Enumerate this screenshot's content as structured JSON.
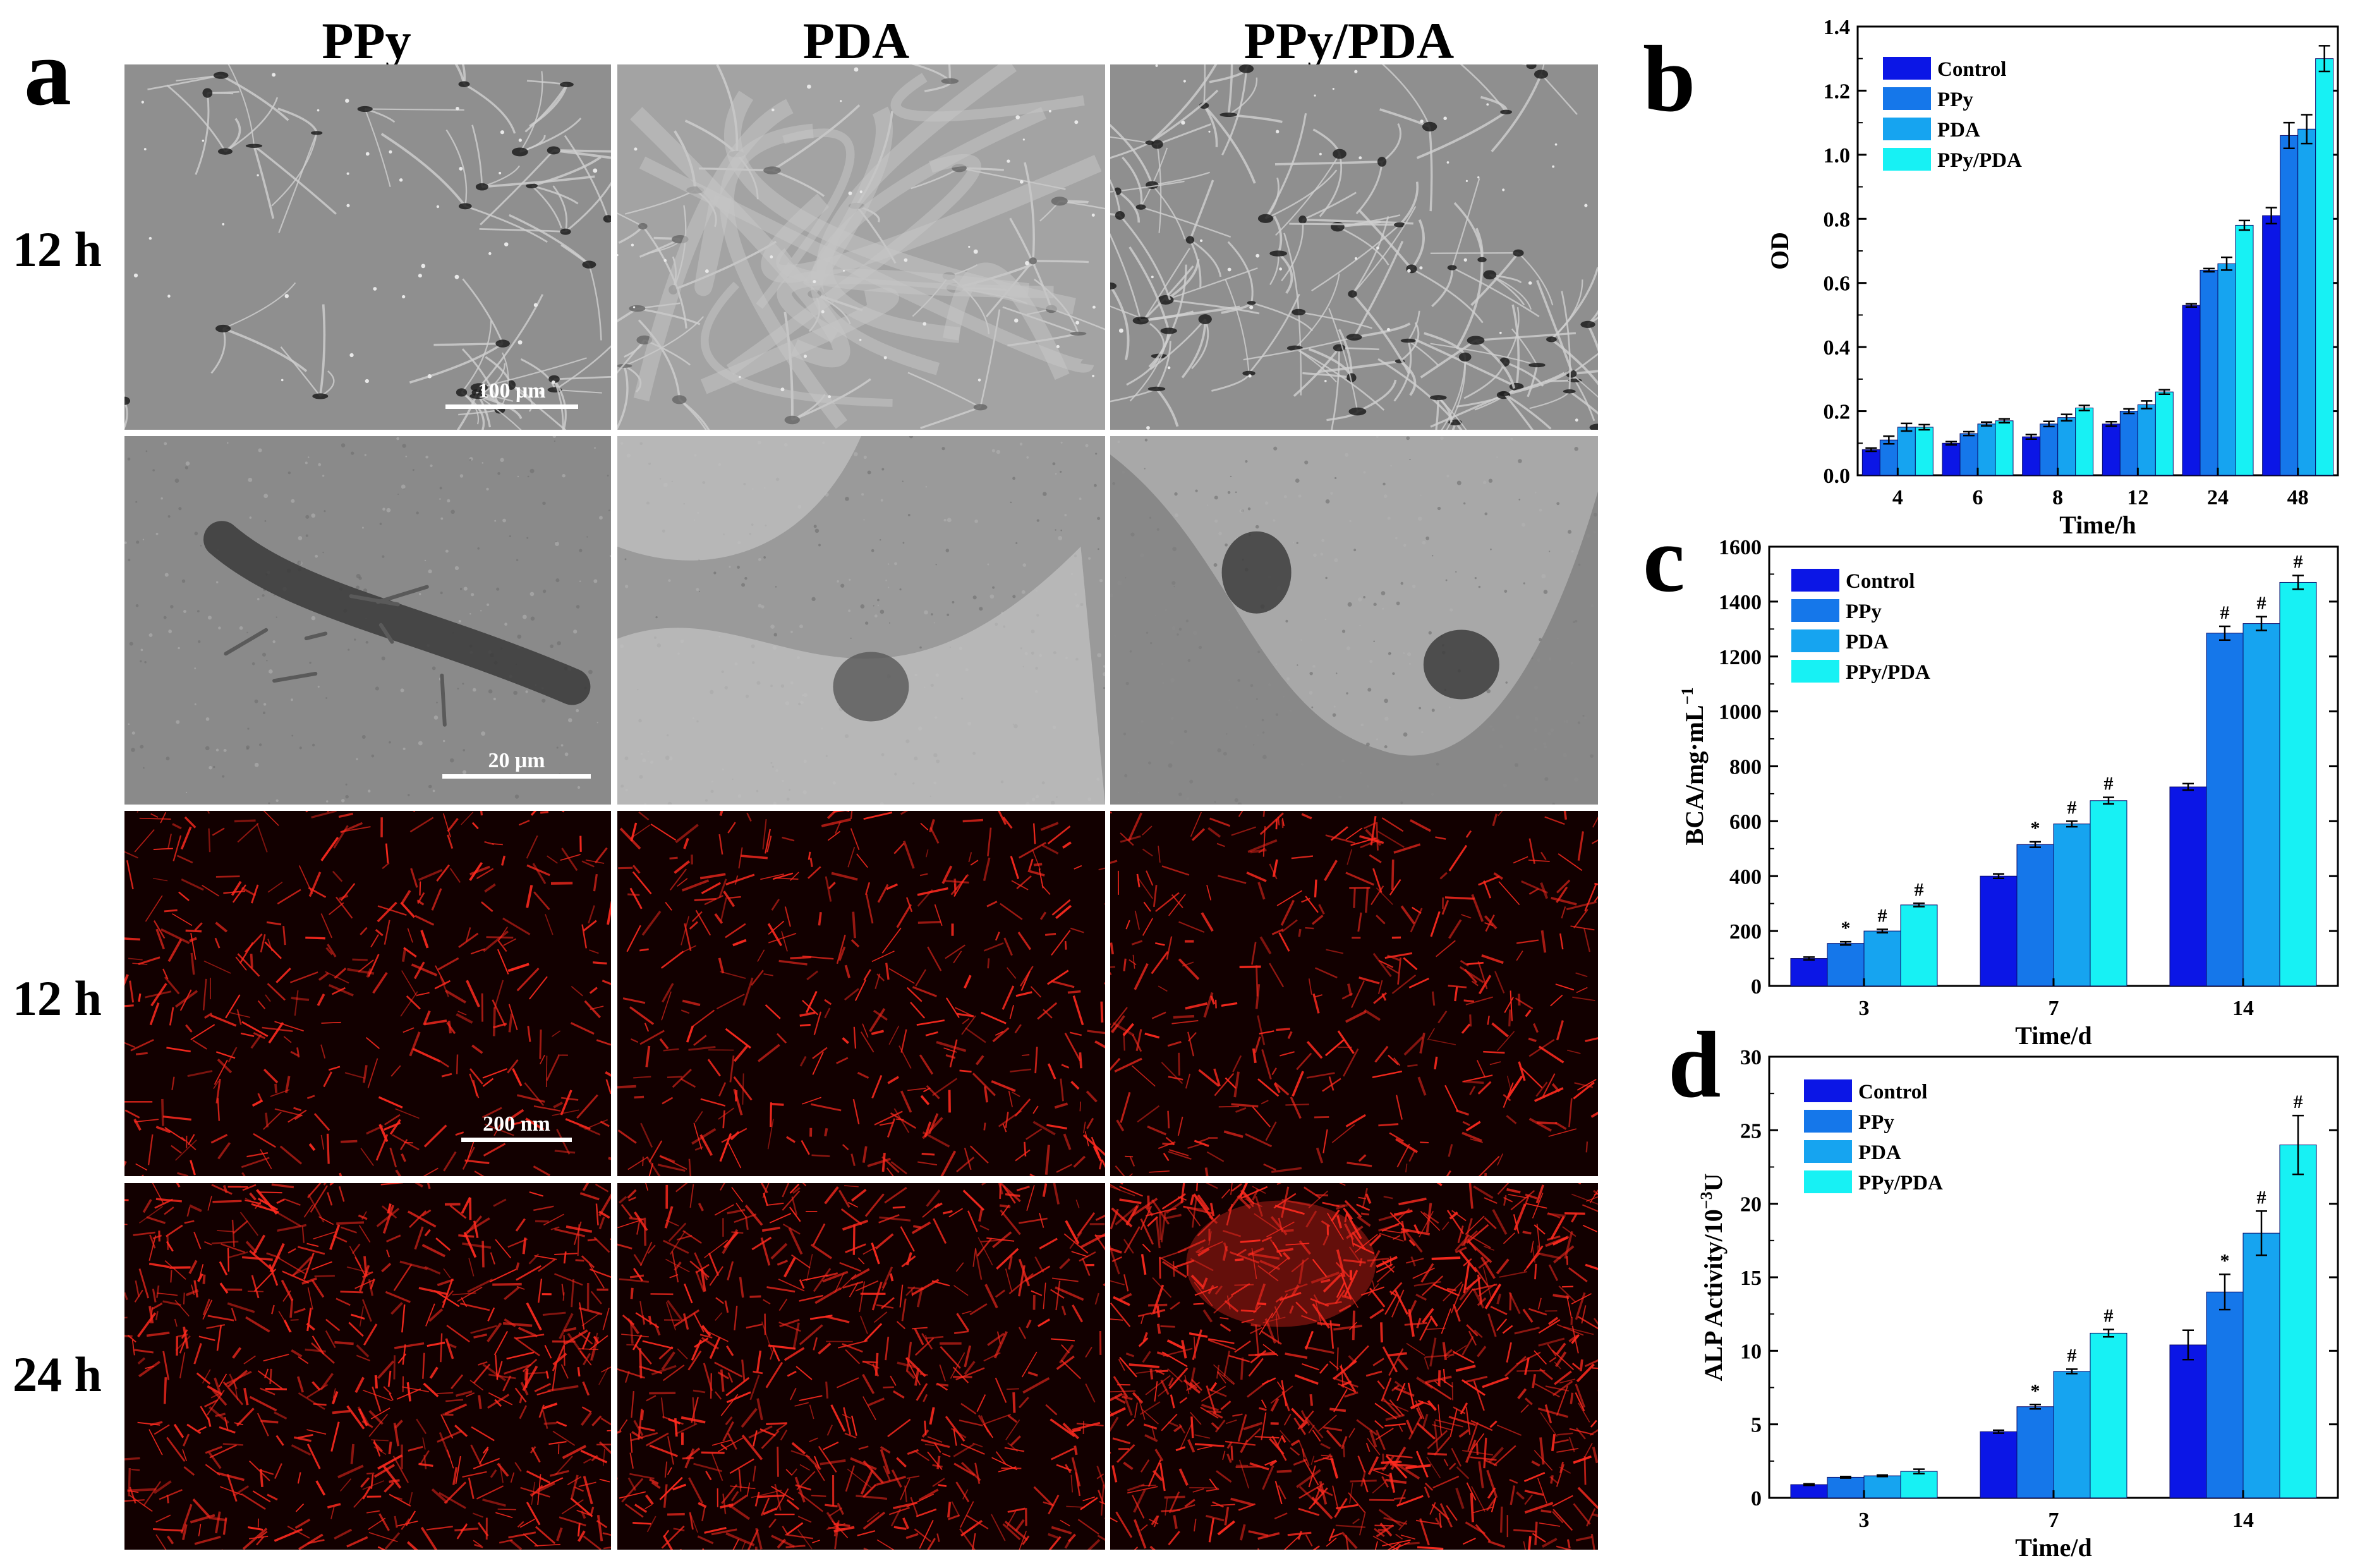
{
  "panels": {
    "a": "a",
    "b": "b",
    "c": "c",
    "d": "d"
  },
  "columns": [
    "PPy",
    "PDA",
    "PPy/PDA"
  ],
  "rows": [
    "12 h",
    "",
    "12 h",
    "24 h"
  ],
  "scalebars": [
    "100 μm",
    "20 μm",
    "200 nm"
  ],
  "colors": {
    "control": "#0b16e6",
    "ppy": "#1577ea",
    "pda": "#16a4f0",
    "ppypda": "#17f1f4",
    "fluor": "#ff2a1f",
    "sem_bg": "#8d8d8d"
  },
  "chart_data": [
    {
      "type": "bar",
      "panel": "b",
      "categories": [
        "4",
        "6",
        "8",
        "12",
        "24",
        "48"
      ],
      "series": [
        {
          "name": "Control",
          "values": [
            0.08,
            0.1,
            0.12,
            0.16,
            0.53,
            0.81
          ],
          "errors": [
            0.005,
            0.005,
            0.007,
            0.007,
            0.005,
            0.025
          ]
        },
        {
          "name": "PPy",
          "values": [
            0.11,
            0.13,
            0.16,
            0.2,
            0.64,
            1.06
          ],
          "errors": [
            0.012,
            0.006,
            0.008,
            0.007,
            0.005,
            0.04
          ]
        },
        {
          "name": "PDA",
          "values": [
            0.15,
            0.16,
            0.18,
            0.22,
            0.66,
            1.08
          ],
          "errors": [
            0.012,
            0.006,
            0.01,
            0.012,
            0.02,
            0.045
          ]
        },
        {
          "name": "PPy/PDA",
          "values": [
            0.15,
            0.17,
            0.21,
            0.26,
            0.78,
            1.3
          ],
          "errors": [
            0.008,
            0.006,
            0.008,
            0.007,
            0.015,
            0.04
          ]
        }
      ],
      "xlabel": "Time/h",
      "ylabel": "OD",
      "ylim": [
        0,
        1.4
      ],
      "yticks": [
        0,
        0.2,
        0.4,
        0.6,
        0.8,
        1.0,
        1.2,
        1.4
      ],
      "ytick_labels": [
        "0.0",
        "0.2",
        "0.4",
        "0.6",
        "0.8",
        "1.0",
        "1.2",
        "1.4"
      ],
      "legend": "top-left",
      "marks": []
    },
    {
      "type": "bar",
      "panel": "c",
      "categories": [
        "3",
        "7",
        "14"
      ],
      "series": [
        {
          "name": "Control",
          "values": [
            100,
            400,
            725
          ],
          "errors": [
            5,
            8,
            12
          ]
        },
        {
          "name": "PPy",
          "values": [
            155,
            515,
            1285
          ],
          "errors": [
            6,
            10,
            25
          ]
        },
        {
          "name": "PDA",
          "values": [
            200,
            590,
            1320
          ],
          "errors": [
            6,
            10,
            25
          ]
        },
        {
          "name": "PPy/PDA",
          "values": [
            295,
            675,
            1470
          ],
          "errors": [
            6,
            12,
            25
          ]
        }
      ],
      "xlabel": "Time/d",
      "ylabel": "BCA/mg·mL",
      "ylabel_sup": "−1",
      "ylim": [
        0,
        1600
      ],
      "yticks": [
        0,
        200,
        400,
        600,
        800,
        1000,
        1200,
        1400,
        1600
      ],
      "ytick_labels": [
        "0",
        "200",
        "400",
        "600",
        "800",
        "1000",
        "1200",
        "1400",
        "1600"
      ],
      "legend": "top-left",
      "marks": [
        [
          "",
          "*",
          "#",
          "#"
        ],
        [
          "",
          "*",
          "#",
          "#"
        ],
        [
          "",
          "#",
          "#",
          "#"
        ]
      ]
    },
    {
      "type": "bar",
      "panel": "d",
      "categories": [
        "3",
        "7",
        "14"
      ],
      "series": [
        {
          "name": "Control",
          "values": [
            0.9,
            4.5,
            10.4
          ],
          "errors": [
            0.05,
            0.1,
            1.0
          ]
        },
        {
          "name": "PPy",
          "values": [
            1.4,
            6.2,
            14.0
          ],
          "errors": [
            0.05,
            0.15,
            1.2
          ]
        },
        {
          "name": "PDA",
          "values": [
            1.5,
            8.6,
            18.0
          ],
          "errors": [
            0.05,
            0.15,
            1.5
          ]
        },
        {
          "name": "PPy/PDA",
          "values": [
            1.8,
            11.2,
            24.0
          ],
          "errors": [
            0.15,
            0.25,
            2.0
          ]
        }
      ],
      "xlabel": "Time/d",
      "ylabel": "ALP Activity/10",
      "ylabel_sup": "−3",
      "ylabel_tail": "U",
      "ylim": [
        0,
        30
      ],
      "yticks": [
        0,
        5,
        10,
        15,
        20,
        25,
        30
      ],
      "ytick_labels": [
        "0",
        "5",
        "10",
        "15",
        "20",
        "25",
        "30"
      ],
      "legend": "top-left",
      "marks": [
        [
          "",
          "",
          "",
          ""
        ],
        [
          "",
          "*",
          "#",
          "#"
        ],
        [
          "",
          "*",
          "#",
          "#"
        ]
      ]
    }
  ]
}
